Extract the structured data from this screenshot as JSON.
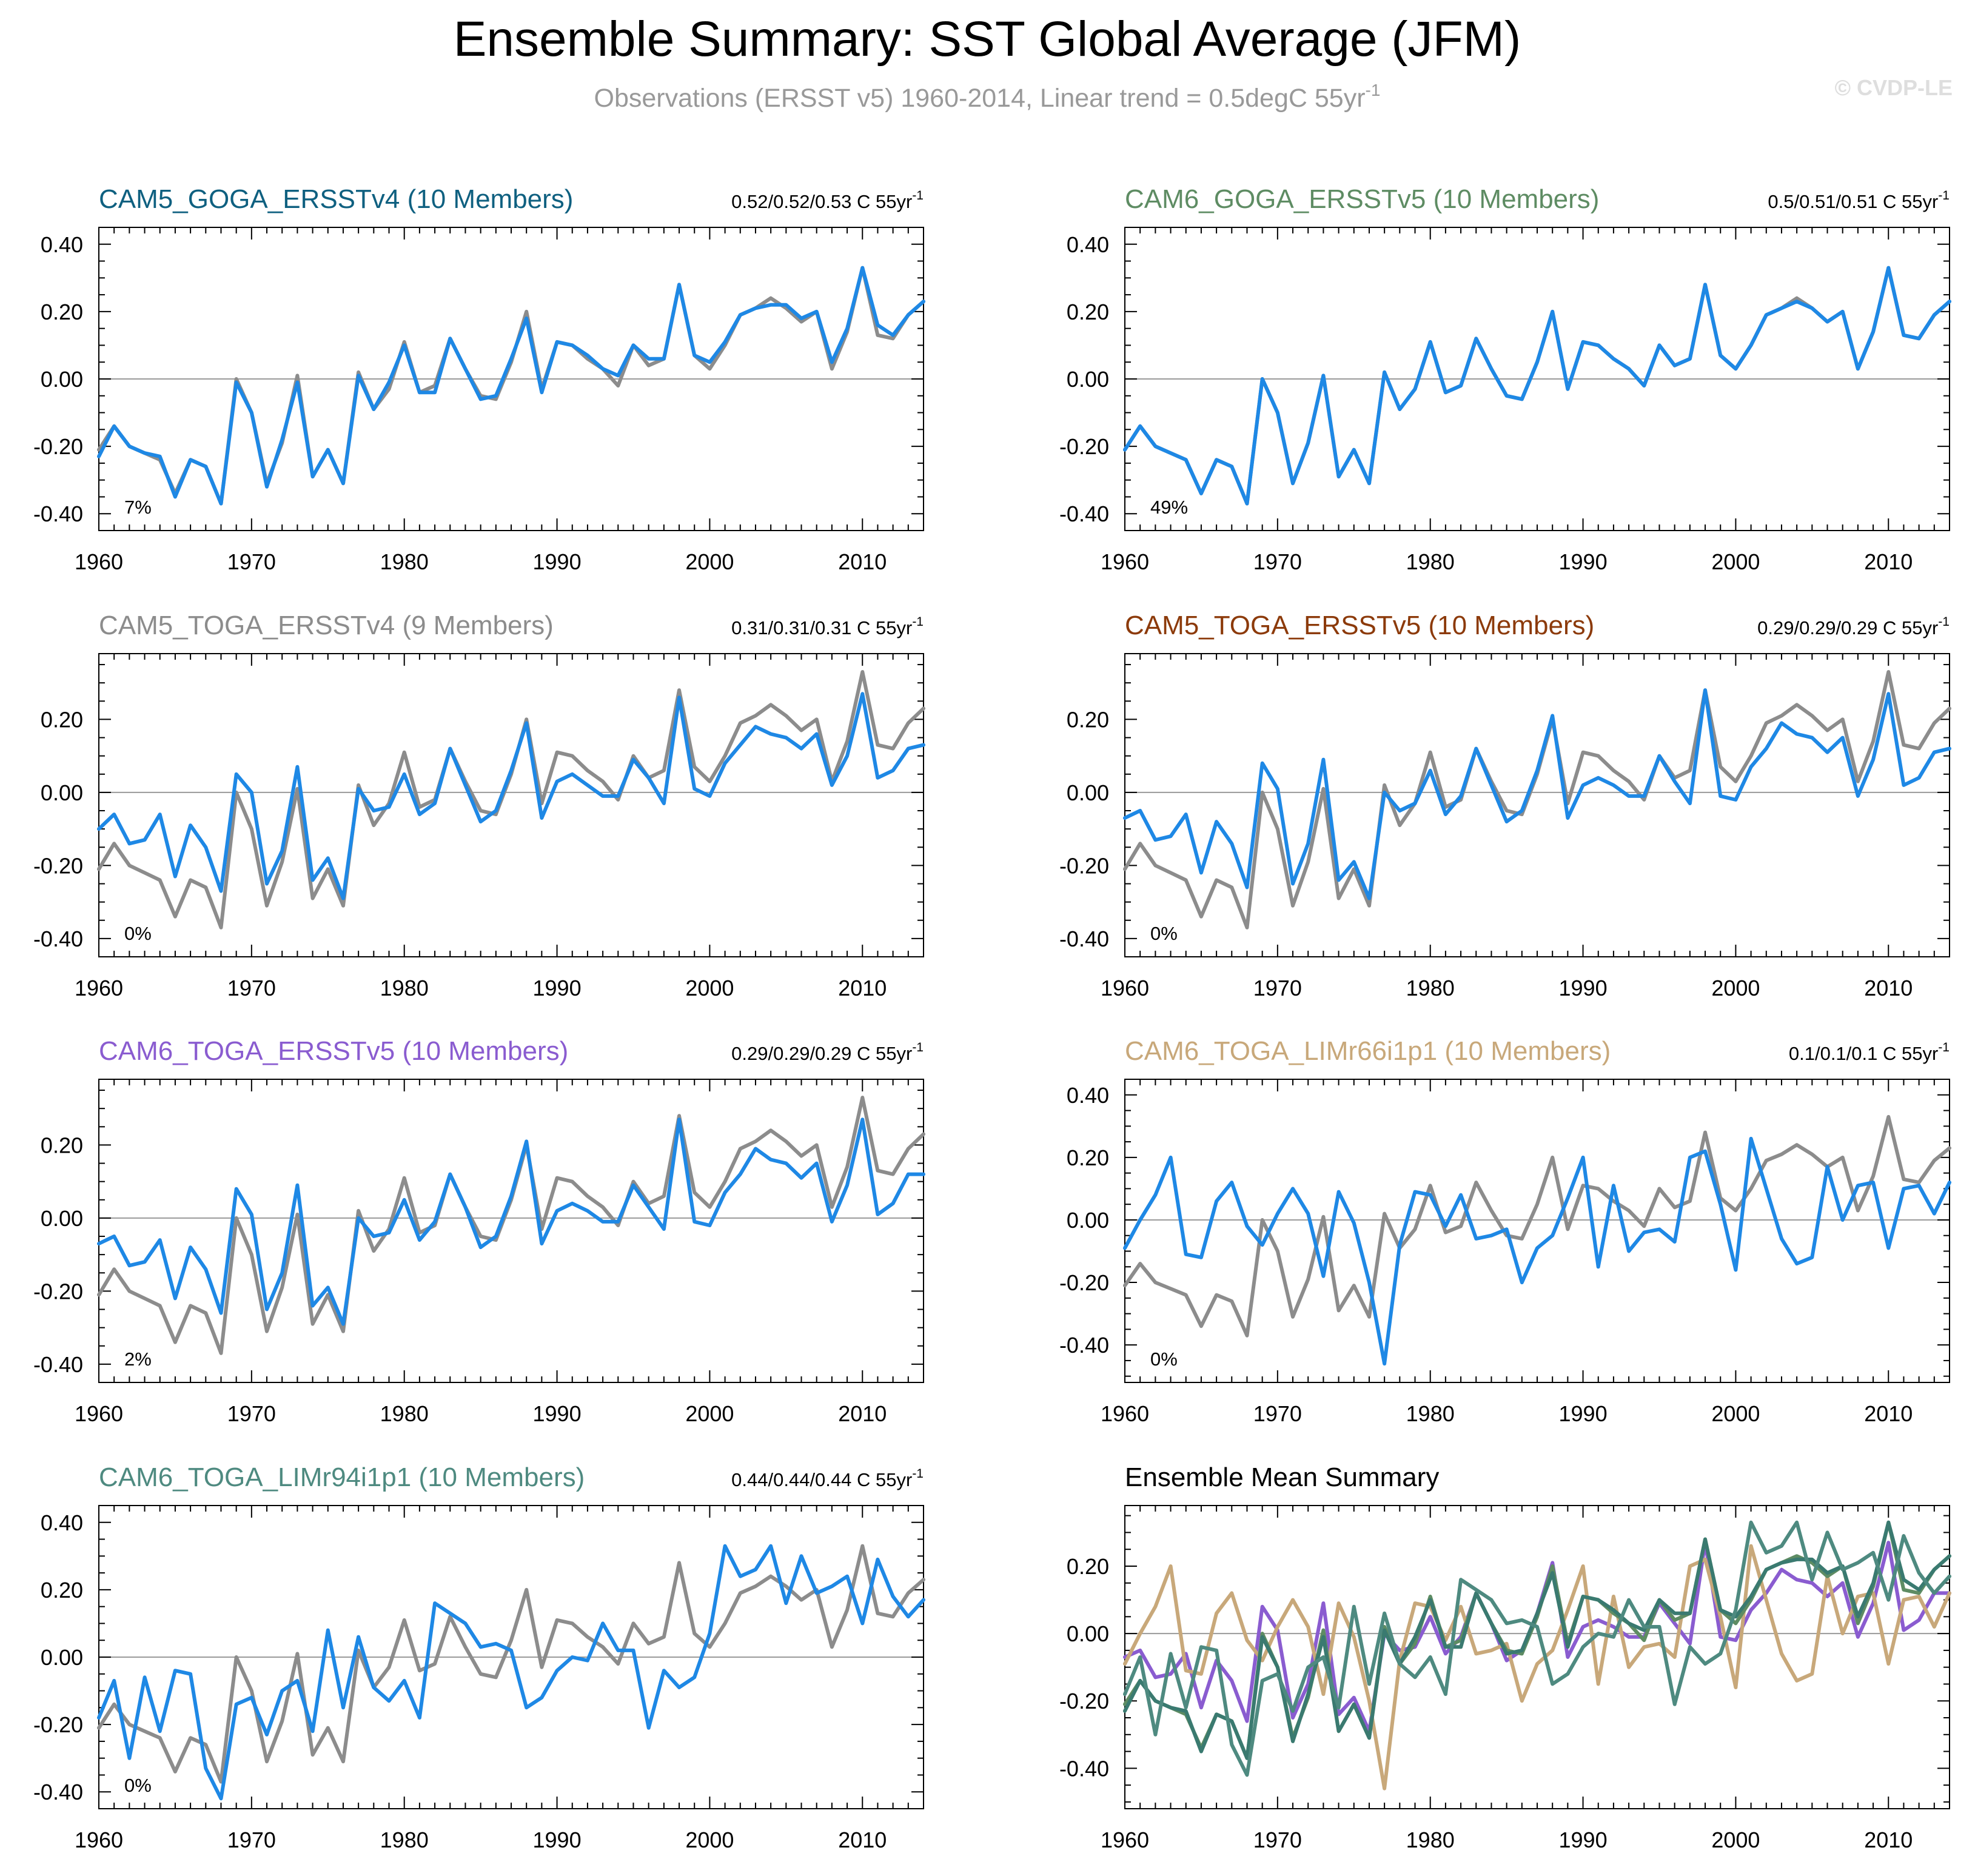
{
  "header": {
    "title": "Ensemble Summary: SST Global Average (JFM)",
    "subtitle": "Observations (ERSST v5) 1960-2014, Linear trend = 0.5degC 55yr",
    "subtitle_sup": "-1",
    "watermark": "© CVDP-LE"
  },
  "colors": {
    "observations": "#8c8c8c",
    "ensemble": "#1e88e5",
    "grid_axis": "#000000"
  },
  "chart_data": [
    {
      "type": "line",
      "title": "CAM5_GOGA_ERSSTv4 (10 Members)",
      "title_color": "#0f6080",
      "stats": "0.52/0.52/0.53 C 55yr",
      "stats_sup": "-1",
      "percent": "7%",
      "xlim": [
        1960,
        2014
      ],
      "ylim": [
        -0.45,
        0.45
      ],
      "xticks": [
        1960,
        1970,
        1980,
        1990,
        2000,
        2010
      ],
      "xtick_labels": [
        "1960",
        "1970",
        "1980",
        "1990",
        "2000",
        "2010"
      ],
      "yticks": [
        -0.4,
        -0.2,
        0.0,
        0.2,
        0.4
      ],
      "ytick_labels": [
        "-0.40",
        "-0.20",
        "0.00",
        "0.20",
        "0.40"
      ],
      "series_ref": "cam5_goga_v4"
    },
    {
      "type": "line",
      "title": "CAM6_GOGA_ERSSTv5 (10 Members)",
      "title_color": "#5e8c63",
      "stats": "0.5/0.51/0.51 C 55yr",
      "stats_sup": "-1",
      "percent": "49%",
      "xlim": [
        1960,
        2014
      ],
      "ylim": [
        -0.45,
        0.45
      ],
      "xticks": [
        1960,
        1970,
        1980,
        1990,
        2000,
        2010
      ],
      "xtick_labels": [
        "1960",
        "1970",
        "1980",
        "1990",
        "2000",
        "2010"
      ],
      "yticks": [
        -0.4,
        -0.2,
        0.0,
        0.2,
        0.4
      ],
      "ytick_labels": [
        "-0.40",
        "-0.20",
        "0.00",
        "0.20",
        "0.40"
      ],
      "series_ref": "cam6_goga_v5"
    },
    {
      "type": "line",
      "title": "CAM5_TOGA_ERSSTv4 (9 Members)",
      "title_color": "#8c8c8c",
      "stats": "0.31/0.31/0.31 C 55yr",
      "stats_sup": "-1",
      "percent": "0%",
      "xlim": [
        1960,
        2014
      ],
      "ylim": [
        -0.45,
        0.38
      ],
      "xticks": [
        1960,
        1970,
        1980,
        1990,
        2000,
        2010
      ],
      "xtick_labels": [
        "1960",
        "1970",
        "1980",
        "1990",
        "2000",
        "2010"
      ],
      "yticks": [
        -0.4,
        -0.2,
        0.0,
        0.2
      ],
      "ytick_labels": [
        "-0.40",
        "-0.20",
        "0.00",
        "0.20"
      ],
      "series_ref": "cam5_toga_v4"
    },
    {
      "type": "line",
      "title": "CAM5_TOGA_ERSSTv5 (10 Members)",
      "title_color": "#8c3a0a",
      "stats": "0.29/0.29/0.29 C 55yr",
      "stats_sup": "-1",
      "percent": "0%",
      "xlim": [
        1960,
        2014
      ],
      "ylim": [
        -0.45,
        0.38
      ],
      "xticks": [
        1960,
        1970,
        1980,
        1990,
        2000,
        2010
      ],
      "xtick_labels": [
        "1960",
        "1970",
        "1980",
        "1990",
        "2000",
        "2010"
      ],
      "yticks": [
        -0.4,
        -0.2,
        0.0,
        0.2
      ],
      "ytick_labels": [
        "-0.40",
        "-0.20",
        "0.00",
        "0.20"
      ],
      "series_ref": "cam5_toga_v5"
    },
    {
      "type": "line",
      "title": "CAM6_TOGA_ERSSTv5 (10 Members)",
      "title_color": "#8a5cd0",
      "stats": "0.29/0.29/0.29 C 55yr",
      "stats_sup": "-1",
      "percent": "2%",
      "xlim": [
        1960,
        2014
      ],
      "ylim": [
        -0.45,
        0.38
      ],
      "xticks": [
        1960,
        1970,
        1980,
        1990,
        2000,
        2010
      ],
      "xtick_labels": [
        "1960",
        "1970",
        "1980",
        "1990",
        "2000",
        "2010"
      ],
      "yticks": [
        -0.4,
        -0.2,
        0.0,
        0.2
      ],
      "ytick_labels": [
        "-0.40",
        "-0.20",
        "0.00",
        "0.20"
      ],
      "series_ref": "cam6_toga_v5"
    },
    {
      "type": "line",
      "title": "CAM6_TOGA_LIMr66i1p1 (10 Members)",
      "title_color": "#c8a87a",
      "stats": "0.1/0.1/0.1 C 55yr",
      "stats_sup": "-1",
      "percent": "0%",
      "xlim": [
        1960,
        2014
      ],
      "ylim": [
        -0.52,
        0.45
      ],
      "xticks": [
        1960,
        1970,
        1980,
        1990,
        2000,
        2010
      ],
      "xtick_labels": [
        "1960",
        "1970",
        "1980",
        "1990",
        "2000",
        "2010"
      ],
      "yticks": [
        -0.4,
        -0.2,
        0.0,
        0.2,
        0.4
      ],
      "ytick_labels": [
        "-0.40",
        "-0.20",
        "0.00",
        "0.20",
        "0.40"
      ],
      "series_ref": "cam6_toga_lim66"
    },
    {
      "type": "line",
      "title": "CAM6_TOGA_LIMr94i1p1 (10 Members)",
      "title_color": "#4e8a80",
      "stats": "0.44/0.44/0.44 C 55yr",
      "stats_sup": "-1",
      "percent": "0%",
      "xlim": [
        1960,
        2014
      ],
      "ylim": [
        -0.45,
        0.45
      ],
      "xticks": [
        1960,
        1970,
        1980,
        1990,
        2000,
        2010
      ],
      "xtick_labels": [
        "1960",
        "1970",
        "1980",
        "1990",
        "2000",
        "2010"
      ],
      "yticks": [
        -0.4,
        -0.2,
        0.0,
        0.2,
        0.4
      ],
      "ytick_labels": [
        "-0.40",
        "-0.20",
        "0.00",
        "0.20",
        "0.40"
      ],
      "series_ref": "cam6_toga_lim94"
    },
    {
      "type": "line",
      "title": "Ensemble Mean Summary",
      "title_color": "#000000",
      "stats": "",
      "stats_sup": "",
      "percent": "",
      "xlim": [
        1960,
        2014
      ],
      "ylim": [
        -0.52,
        0.38
      ],
      "xticks": [
        1960,
        1970,
        1980,
        1990,
        2000,
        2010
      ],
      "xtick_labels": [
        "1960",
        "1970",
        "1980",
        "1990",
        "2000",
        "2010"
      ],
      "yticks": [
        -0.4,
        -0.2,
        0.0,
        0.2
      ],
      "ytick_labels": [
        "-0.40",
        "-0.20",
        "0.00",
        "0.20"
      ],
      "series_ref": "summary"
    }
  ],
  "series": {
    "x_start": 1960,
    "x_end": 2014,
    "observations": [
      -0.21,
      -0.14,
      -0.2,
      -0.22,
      -0.24,
      -0.34,
      -0.24,
      -0.26,
      -0.37,
      0.0,
      -0.1,
      -0.31,
      -0.19,
      0.01,
      -0.29,
      -0.21,
      -0.31,
      0.02,
      -0.09,
      -0.03,
      0.11,
      -0.04,
      -0.02,
      0.12,
      0.03,
      -0.05,
      -0.06,
      0.05,
      0.2,
      -0.03,
      0.11,
      0.1,
      0.06,
      0.03,
      -0.02,
      0.1,
      0.04,
      0.06,
      0.28,
      0.07,
      0.03,
      0.1,
      0.19,
      0.21,
      0.24,
      0.21,
      0.17,
      0.2,
      0.03,
      0.14,
      0.33,
      0.13,
      0.12,
      0.19,
      0.23
    ],
    "cam5_goga_v4": [
      -0.23,
      -0.14,
      -0.2,
      -0.22,
      -0.23,
      -0.35,
      -0.24,
      -0.26,
      -0.37,
      -0.01,
      -0.1,
      -0.32,
      -0.18,
      -0.01,
      -0.29,
      -0.21,
      -0.31,
      0.01,
      -0.09,
      -0.01,
      0.1,
      -0.04,
      -0.04,
      0.12,
      0.03,
      -0.06,
      -0.05,
      0.06,
      0.18,
      -0.04,
      0.11,
      0.1,
      0.07,
      0.03,
      0.01,
      0.1,
      0.06,
      0.06,
      0.28,
      0.07,
      0.05,
      0.11,
      0.19,
      0.21,
      0.22,
      0.22,
      0.18,
      0.2,
      0.05,
      0.15,
      0.33,
      0.16,
      0.13,
      0.19,
      0.23
    ],
    "cam6_goga_v5": [
      -0.21,
      -0.14,
      -0.2,
      -0.22,
      -0.24,
      -0.34,
      -0.24,
      -0.26,
      -0.37,
      0.0,
      -0.1,
      -0.31,
      -0.19,
      0.01,
      -0.29,
      -0.21,
      -0.31,
      0.02,
      -0.09,
      -0.03,
      0.11,
      -0.04,
      -0.02,
      0.12,
      0.03,
      -0.05,
      -0.06,
      0.05,
      0.2,
      -0.03,
      0.11,
      0.1,
      0.06,
      0.03,
      -0.02,
      0.1,
      0.04,
      0.06,
      0.28,
      0.07,
      0.03,
      0.1,
      0.19,
      0.21,
      0.23,
      0.21,
      0.17,
      0.2,
      0.03,
      0.14,
      0.33,
      0.13,
      0.12,
      0.19,
      0.23
    ],
    "cam5_toga_v4": [
      -0.1,
      -0.06,
      -0.14,
      -0.13,
      -0.06,
      -0.23,
      -0.09,
      -0.15,
      -0.27,
      0.05,
      0.0,
      -0.25,
      -0.16,
      0.07,
      -0.24,
      -0.18,
      -0.29,
      0.01,
      -0.05,
      -0.04,
      0.05,
      -0.06,
      -0.03,
      0.12,
      0.02,
      -0.08,
      -0.05,
      0.06,
      0.19,
      -0.07,
      0.03,
      0.05,
      0.02,
      -0.01,
      -0.01,
      0.09,
      0.04,
      -0.03,
      0.26,
      0.01,
      -0.01,
      0.08,
      0.13,
      0.18,
      0.16,
      0.15,
      0.12,
      0.16,
      0.02,
      0.1,
      0.27,
      0.04,
      0.06,
      0.12,
      0.13
    ],
    "cam5_toga_v5": [
      -0.07,
      -0.05,
      -0.13,
      -0.12,
      -0.06,
      -0.22,
      -0.08,
      -0.14,
      -0.26,
      0.08,
      0.01,
      -0.25,
      -0.14,
      0.09,
      -0.24,
      -0.19,
      -0.29,
      0.0,
      -0.05,
      -0.03,
      0.06,
      -0.06,
      -0.01,
      0.12,
      0.02,
      -0.08,
      -0.05,
      0.06,
      0.21,
      -0.07,
      0.02,
      0.04,
      0.02,
      -0.01,
      -0.01,
      0.1,
      0.03,
      -0.03,
      0.28,
      -0.01,
      -0.02,
      0.07,
      0.12,
      0.19,
      0.16,
      0.15,
      0.11,
      0.15,
      -0.01,
      0.09,
      0.27,
      0.02,
      0.04,
      0.11,
      0.12
    ],
    "cam6_toga_v5": [
      -0.07,
      -0.05,
      -0.13,
      -0.12,
      -0.06,
      -0.22,
      -0.08,
      -0.14,
      -0.26,
      0.08,
      0.01,
      -0.25,
      -0.15,
      0.09,
      -0.24,
      -0.19,
      -0.29,
      0.0,
      -0.05,
      -0.04,
      0.05,
      -0.06,
      -0.01,
      0.12,
      0.03,
      -0.08,
      -0.05,
      0.06,
      0.21,
      -0.07,
      0.02,
      0.04,
      0.02,
      -0.01,
      -0.01,
      0.09,
      0.03,
      -0.03,
      0.27,
      -0.01,
      -0.02,
      0.07,
      0.12,
      0.19,
      0.16,
      0.15,
      0.11,
      0.15,
      -0.01,
      0.09,
      0.27,
      0.01,
      0.04,
      0.12,
      0.12
    ],
    "cam6_toga_lim66": [
      -0.09,
      0.0,
      0.08,
      0.2,
      -0.11,
      -0.12,
      0.06,
      0.12,
      -0.02,
      -0.08,
      0.02,
      0.1,
      0.02,
      -0.18,
      0.09,
      -0.01,
      -0.2,
      -0.46,
      -0.08,
      0.09,
      0.08,
      -0.02,
      0.08,
      -0.06,
      -0.05,
      -0.03,
      -0.2,
      -0.09,
      -0.05,
      0.07,
      0.2,
      -0.15,
      0.11,
      -0.1,
      -0.04,
      -0.03,
      -0.07,
      0.2,
      0.22,
      0.05,
      -0.16,
      0.26,
      0.1,
      -0.06,
      -0.14,
      -0.12,
      0.17,
      0.0,
      0.11,
      0.12,
      -0.09,
      0.1,
      0.11,
      0.02,
      0.12
    ],
    "cam6_toga_lim94": [
      -0.18,
      -0.07,
      -0.3,
      -0.06,
      -0.22,
      -0.04,
      -0.05,
      -0.33,
      -0.42,
      -0.14,
      -0.12,
      -0.23,
      -0.1,
      -0.07,
      -0.22,
      0.08,
      -0.15,
      0.06,
      -0.09,
      -0.13,
      -0.07,
      -0.18,
      0.16,
      0.13,
      0.1,
      0.03,
      0.04,
      0.02,
      -0.15,
      -0.12,
      -0.04,
      0.0,
      -0.01,
      0.1,
      0.02,
      0.02,
      -0.21,
      -0.04,
      -0.09,
      -0.06,
      0.07,
      0.33,
      0.24,
      0.26,
      0.33,
      0.16,
      0.3,
      0.19,
      0.21,
      0.24,
      0.1,
      0.29,
      0.18,
      0.12,
      0.17
    ],
    "summary_colors": [
      "#8a5cd0",
      "#c8a87a",
      "#5e8c63",
      "#3a7a70",
      "#4e8a80"
    ]
  }
}
